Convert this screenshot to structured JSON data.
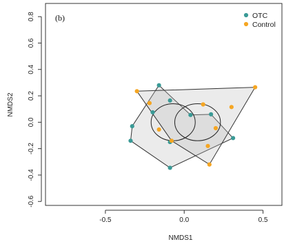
{
  "chart_data": {
    "type": "scatter",
    "panel_label": "(b)",
    "xlabel": "NMDS1",
    "ylabel": "NMDS2",
    "xlim": [
      -0.88,
      0.62
    ],
    "ylim": [
      -0.63,
      0.9
    ],
    "x_ticks": [
      -0.5,
      0.0,
      0.5
    ],
    "x_tick_labels": [
      "-0.5",
      "0.0",
      "0.5"
    ],
    "y_ticks": [
      -0.6,
      -0.4,
      -0.2,
      0.0,
      0.2,
      0.4,
      0.6,
      0.8
    ],
    "y_tick_labels": [
      "-0.6",
      "-0.4",
      "-0.2",
      "0.0",
      "0.2",
      "0.4",
      "0.6",
      "0.8"
    ],
    "grid": false,
    "legend_position": "top-right",
    "series": [
      {
        "name": "OTC",
        "color": "#3a9a96",
        "points": [
          [
            -0.16,
            0.28
          ],
          [
            -0.09,
            0.165
          ],
          [
            -0.2,
            0.075
          ],
          [
            0.04,
            0.055
          ],
          [
            0.17,
            0.06
          ],
          [
            -0.33,
            -0.03
          ],
          [
            -0.34,
            -0.14
          ],
          [
            -0.09,
            -0.15
          ],
          [
            0.31,
            -0.12
          ],
          [
            -0.09,
            -0.345
          ]
        ],
        "hull": [
          [
            -0.16,
            0.28
          ],
          [
            0.04,
            0.055
          ],
          [
            0.17,
            0.06
          ],
          [
            0.31,
            -0.12
          ],
          [
            -0.09,
            -0.345
          ],
          [
            -0.34,
            -0.14
          ],
          [
            -0.33,
            -0.03
          ]
        ],
        "ellipse": {
          "cx": -0.07,
          "cy": 0.0,
          "rx": 0.14,
          "ry": 0.14
        }
      },
      {
        "name": "Control",
        "color": "#f5a623",
        "points": [
          [
            -0.3,
            0.235
          ],
          [
            0.45,
            0.265
          ],
          [
            -0.22,
            0.145
          ],
          [
            0.12,
            0.135
          ],
          [
            0.3,
            0.115
          ],
          [
            -0.16,
            -0.055
          ],
          [
            -0.08,
            -0.14
          ],
          [
            0.2,
            -0.045
          ],
          [
            0.15,
            -0.18
          ],
          [
            0.16,
            -0.32
          ]
        ],
        "hull": [
          [
            -0.3,
            0.235
          ],
          [
            0.45,
            0.265
          ],
          [
            0.16,
            -0.32
          ],
          [
            -0.08,
            -0.14
          ]
        ],
        "ellipse": {
          "cx": 0.085,
          "cy": 0.0,
          "rx": 0.145,
          "ry": 0.14
        }
      }
    ]
  }
}
